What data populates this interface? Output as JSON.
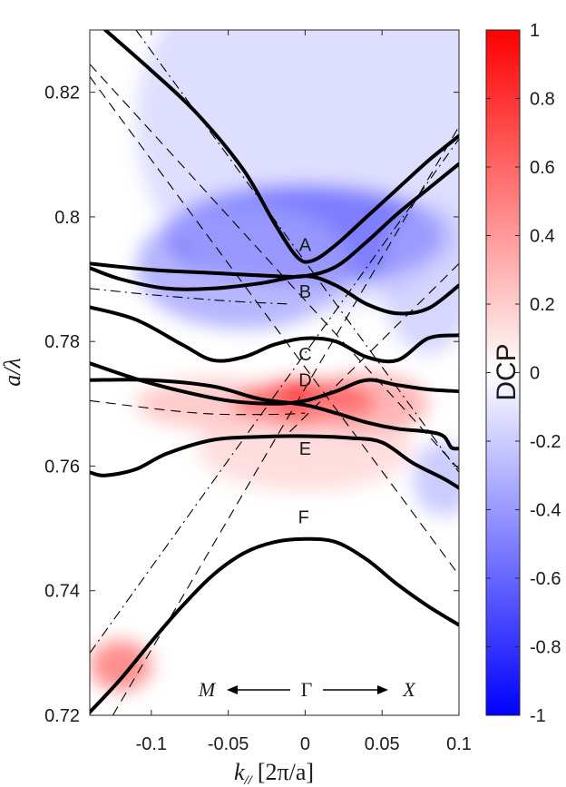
{
  "chart_data": {
    "type": "heatmap",
    "xlabel_parts": {
      "var": "k",
      "sub": "//",
      "units": "[2π/a]"
    },
    "ylabel": "a/λ",
    "xlim": [
      -0.14,
      0.1
    ],
    "ylim": [
      0.72,
      0.83
    ],
    "xticks": [
      -0.1,
      -0.05,
      0,
      0.05,
      0.1
    ],
    "xtick_labels": [
      "-0.1",
      "-0.05",
      "0",
      "0.05",
      "0.1"
    ],
    "yticks": [
      0.72,
      0.74,
      0.76,
      0.78,
      0.8,
      0.82
    ],
    "ytick_labels": [
      "0.72",
      "0.74",
      "0.76",
      "0.78",
      "0.8",
      "0.82"
    ],
    "colorbar": {
      "label": "DCP",
      "range": [
        -1,
        1
      ],
      "colormap": [
        "#0000ff",
        "#ffffff",
        "#ff0000"
      ],
      "ticks": [
        -1,
        -0.8,
        -0.6,
        -0.4,
        -0.2,
        0,
        0.2,
        0.4,
        0.6,
        0.8,
        1
      ],
      "tick_labels": [
        "-1",
        "-0.8",
        "-0.6",
        "-0.4",
        "-0.2",
        "0",
        "0.2",
        "0.4",
        "0.6",
        "0.8",
        "1"
      ]
    },
    "heat_regions": [
      {
        "x": 0.0,
        "y": 0.797,
        "dcp": -0.85,
        "sx": 0.09,
        "sy": 0.008
      },
      {
        "x": -0.04,
        "y": 0.792,
        "dcp": -0.45,
        "sx": 0.07,
        "sy": 0.01
      },
      {
        "x": 0.01,
        "y": 0.815,
        "dcp": -0.25,
        "sx": 0.12,
        "sy": 0.03
      },
      {
        "x": 0.0,
        "y": 0.77,
        "dcp": 0.95,
        "sx": 0.045,
        "sy": 0.0035
      },
      {
        "x": -0.06,
        "y": 0.77,
        "dcp": 0.35,
        "sx": 0.05,
        "sy": 0.004
      },
      {
        "x": 0.04,
        "y": 0.77,
        "dcp": 0.45,
        "sx": 0.04,
        "sy": 0.005
      },
      {
        "x": 0.0,
        "y": 0.763,
        "dcp": 0.25,
        "sx": 0.07,
        "sy": 0.007
      },
      {
        "x": -0.12,
        "y": 0.728,
        "dcp": 0.6,
        "sx": 0.02,
        "sy": 0.004
      },
      {
        "x": 0.09,
        "y": 0.758,
        "dcp": -0.35,
        "sx": 0.02,
        "sy": 0.006
      },
      {
        "x": 0.08,
        "y": 0.79,
        "dcp": -0.3,
        "sx": 0.03,
        "sy": 0.012
      }
    ],
    "bands": [
      {
        "name": "band-A-upper",
        "points": [
          [
            -0.13,
            0.83
          ],
          [
            -0.1,
            0.8235
          ],
          [
            -0.07,
            0.8165
          ],
          [
            -0.04,
            0.8075
          ],
          [
            -0.02,
            0.799
          ],
          [
            -0.005,
            0.7935
          ],
          [
            0.005,
            0.793
          ],
          [
            0.02,
            0.7955
          ],
          [
            0.04,
            0.8
          ],
          [
            0.06,
            0.8045
          ],
          [
            0.08,
            0.809
          ],
          [
            0.1,
            0.813
          ]
        ]
      },
      {
        "name": "band-A-lower",
        "points": [
          [
            -0.14,
            0.7925
          ],
          [
            -0.1,
            0.7915
          ],
          [
            -0.06,
            0.791
          ],
          [
            -0.02,
            0.7905
          ],
          [
            0.0,
            0.7905
          ],
          [
            0.02,
            0.792
          ],
          [
            0.04,
            0.796
          ],
          [
            0.06,
            0.8005
          ],
          [
            0.08,
            0.8045
          ],
          [
            0.1,
            0.8085
          ]
        ]
      },
      {
        "name": "band-B",
        "points": [
          [
            -0.14,
            0.7918
          ],
          [
            -0.12,
            0.79
          ],
          [
            -0.09,
            0.7885
          ],
          [
            -0.06,
            0.7885
          ],
          [
            -0.03,
            0.7893
          ],
          [
            0.0,
            0.7905
          ],
          [
            0.02,
            0.789
          ],
          [
            0.04,
            0.786
          ],
          [
            0.06,
            0.7845
          ],
          [
            0.08,
            0.7853
          ],
          [
            0.1,
            0.789
          ]
        ]
      },
      {
        "name": "band-C",
        "points": [
          [
            -0.14,
            0.7855
          ],
          [
            -0.11,
            0.7835
          ],
          [
            -0.08,
            0.7795
          ],
          [
            -0.06,
            0.777
          ],
          [
            -0.04,
            0.7775
          ],
          [
            -0.02,
            0.7795
          ],
          [
            0.0,
            0.7805
          ],
          [
            0.02,
            0.78
          ],
          [
            0.04,
            0.7775
          ],
          [
            0.06,
            0.777
          ],
          [
            0.08,
            0.7805
          ],
          [
            0.1,
            0.781
          ]
        ]
      },
      {
        "name": "band-D-upper",
        "points": [
          [
            -0.14,
            0.7765
          ],
          [
            -0.11,
            0.774
          ],
          [
            -0.08,
            0.772
          ],
          [
            -0.05,
            0.7705
          ],
          [
            -0.02,
            0.77
          ],
          [
            0.0,
            0.7705
          ],
          [
            0.02,
            0.772
          ],
          [
            0.04,
            0.7738
          ],
          [
            0.06,
            0.773
          ],
          [
            0.08,
            0.7723
          ],
          [
            0.1,
            0.772
          ]
        ]
      },
      {
        "name": "band-D-lower",
        "points": [
          [
            -0.14,
            0.7738
          ],
          [
            -0.1,
            0.7738
          ],
          [
            -0.06,
            0.7728
          ],
          [
            -0.03,
            0.7708
          ],
          [
            0.0,
            0.7698
          ],
          [
            0.02,
            0.7685
          ],
          [
            0.04,
            0.767
          ],
          [
            0.06,
            0.766
          ],
          [
            0.08,
            0.7655
          ],
          [
            0.09,
            0.7648
          ],
          [
            0.095,
            0.763
          ],
          [
            0.1,
            0.7628
          ]
        ]
      },
      {
        "name": "band-E",
        "points": [
          [
            -0.14,
            0.759
          ],
          [
            -0.13,
            0.7585
          ],
          [
            -0.11,
            0.7595
          ],
          [
            -0.09,
            0.762
          ],
          [
            -0.06,
            0.7642
          ],
          [
            -0.03,
            0.7647
          ],
          [
            0.0,
            0.7648
          ],
          [
            0.03,
            0.7645
          ],
          [
            0.05,
            0.7638
          ],
          [
            0.07,
            0.7605
          ],
          [
            0.09,
            0.758
          ],
          [
            0.1,
            0.7565
          ]
        ]
      },
      {
        "name": "band-F",
        "points": [
          [
            -0.14,
            0.7205
          ],
          [
            -0.12,
            0.7258
          ],
          [
            -0.1,
            0.7318
          ],
          [
            -0.08,
            0.7375
          ],
          [
            -0.06,
            0.7425
          ],
          [
            -0.04,
            0.746
          ],
          [
            -0.02,
            0.7478
          ],
          [
            0.0,
            0.7483
          ],
          [
            0.02,
            0.7478
          ],
          [
            0.04,
            0.745
          ],
          [
            0.06,
            0.741
          ],
          [
            0.08,
            0.7375
          ],
          [
            0.1,
            0.7345
          ]
        ]
      }
    ],
    "guide_lines": [
      {
        "name": "dashed-left-upper",
        "style": "dashed",
        "points": [
          [
            -0.14,
            0.8225
          ],
          [
            0.1,
            0.7425
          ]
        ]
      },
      {
        "name": "dashed-steep-up",
        "style": "dashed",
        "points": [
          [
            -0.125,
            0.72
          ],
          [
            0.1,
            0.8145
          ]
        ]
      },
      {
        "name": "dashed-steep-down",
        "style": "dashed",
        "points": [
          [
            -0.14,
            0.8245
          ],
          [
            0.1,
            0.7595
          ]
        ]
      },
      {
        "name": "dashed-right-rising",
        "style": "dashed",
        "points": [
          [
            -0.01,
            0.7655
          ],
          [
            0.1,
            0.7925
          ]
        ]
      },
      {
        "name": "dashed-flat-left",
        "style": "dashed",
        "points": [
          [
            -0.14,
            0.7705
          ],
          [
            -0.07,
            0.7685
          ],
          [
            -0.02,
            0.7683
          ],
          [
            0.0,
            0.7685
          ]
        ]
      },
      {
        "name": "dashdot-rising",
        "style": "dashdot",
        "points": [
          [
            -0.14,
            0.73
          ],
          [
            0.1,
            0.8125
          ]
        ]
      },
      {
        "name": "dashdot-falling",
        "style": "dashdot",
        "points": [
          [
            -0.11,
            0.83
          ],
          [
            0.1,
            0.759
          ]
        ]
      },
      {
        "name": "dashdot-flat",
        "style": "dashdot",
        "points": [
          [
            -0.14,
            0.7885
          ],
          [
            -0.1,
            0.7875
          ],
          [
            -0.05,
            0.7865
          ],
          [
            -0.01,
            0.786
          ]
        ]
      }
    ],
    "band_labels": [
      {
        "text": "A",
        "x": 0.0,
        "y": 0.7945
      },
      {
        "text": "B",
        "x": 0.0,
        "y": 0.787
      },
      {
        "text": "C",
        "x": 0.0,
        "y": 0.777
      },
      {
        "text": "D",
        "x": 0.0,
        "y": 0.7728
      },
      {
        "text": "E",
        "x": 0.0,
        "y": 0.7618
      },
      {
        "text": "F",
        "x": -0.001,
        "y": 0.7508
      }
    ],
    "direction_labels": {
      "left": "M",
      "center": "Γ",
      "right": "X"
    }
  }
}
